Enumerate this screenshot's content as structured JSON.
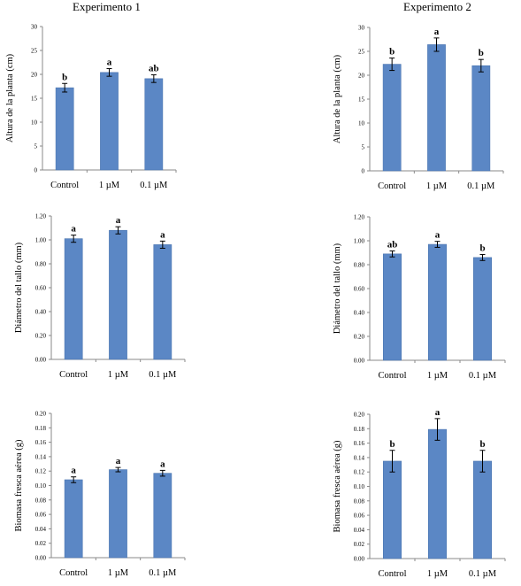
{
  "titles": [
    "Experimento 1",
    "Experimento 2"
  ],
  "colors": {
    "bar": "#5b87c5",
    "bar_edge": "#4a74b0",
    "axis": "#8a8a8a"
  },
  "chart_data": [
    {
      "type": "bar",
      "title": "Experimento 1",
      "xlabel": "",
      "ylabel": "Altura de la planta  (cm)",
      "categories": [
        "Control",
        "1 µM",
        "0.1 µM"
      ],
      "values": [
        17.2,
        20.4,
        19.1
      ],
      "errors": [
        0.9,
        0.8,
        0.8
      ],
      "labels": [
        "b",
        "a",
        "ab"
      ],
      "ylim": [
        0,
        30
      ],
      "yticks": [
        "0",
        "5",
        "10",
        "15",
        "20",
        "25",
        "30"
      ]
    },
    {
      "type": "bar",
      "title": "Experimento 2",
      "xlabel": "",
      "ylabel": "Altura de la planta  (cm)",
      "categories": [
        "Control",
        "1 µM",
        "0.1 µM"
      ],
      "values": [
        22.3,
        26.4,
        22.0
      ],
      "errors": [
        1.3,
        1.4,
        1.3
      ],
      "labels": [
        "b",
        "a",
        "b"
      ],
      "ylim": [
        0,
        30
      ],
      "yticks": [
        "0",
        "5",
        "10",
        "15",
        "20",
        "25",
        "30"
      ]
    },
    {
      "type": "bar",
      "title": "",
      "xlabel": "",
      "ylabel": "Diámetro del tallo  (mm)",
      "categories": [
        "Control",
        "1 µM",
        "0.1 µM"
      ],
      "values": [
        1.01,
        1.08,
        0.96
      ],
      "errors": [
        0.03,
        0.03,
        0.03
      ],
      "labels": [
        "a",
        "a",
        "a"
      ],
      "ylim": [
        0,
        1.2
      ],
      "yticks": [
        "0.00",
        "0.20",
        "0.40",
        "0.60",
        "0.80",
        "1.00",
        "1.20"
      ]
    },
    {
      "type": "bar",
      "title": "",
      "xlabel": "",
      "ylabel": "Diámetro del tallo  (mm)",
      "categories": [
        "Control",
        "1 µM",
        "0.1 µM"
      ],
      "values": [
        0.89,
        0.97,
        0.86
      ],
      "errors": [
        0.025,
        0.025,
        0.025
      ],
      "labels": [
        "ab",
        "a",
        "b"
      ],
      "ylim": [
        0,
        1.2
      ],
      "yticks": [
        "0.00",
        "0.20",
        "0.40",
        "0.60",
        "0.80",
        "1.00",
        "1.20"
      ]
    },
    {
      "type": "bar",
      "title": "",
      "xlabel": "",
      "ylabel": "Biomasa fresca aérea  (g)",
      "categories": [
        "Control",
        "1 µM",
        "0.1 µM"
      ],
      "values": [
        0.108,
        0.122,
        0.117
      ],
      "errors": [
        0.004,
        0.003,
        0.004
      ],
      "labels": [
        "a",
        "a",
        "a"
      ],
      "ylim": [
        0,
        0.2
      ],
      "yticks": [
        "0.00",
        "0.02",
        "0.04",
        "0.06",
        "0.08",
        "0.10",
        "0.12",
        "0.14",
        "0.16",
        "0.18",
        "0.20"
      ]
    },
    {
      "type": "bar",
      "title": "",
      "xlabel": "",
      "ylabel": "Biomasa fresca aérea  (g)",
      "categories": [
        "Control",
        "1 µM",
        "0.1 µM"
      ],
      "values": [
        0.135,
        0.179,
        0.135
      ],
      "errors": [
        0.015,
        0.015,
        0.015
      ],
      "labels": [
        "b",
        "a",
        "b"
      ],
      "ylim": [
        0,
        0.2
      ],
      "yticks": [
        "0.00",
        "0.02",
        "0.04",
        "0.06",
        "0.08",
        "0.10",
        "0.12",
        "0.14",
        "0.16",
        "0.18",
        "0.20"
      ]
    }
  ]
}
